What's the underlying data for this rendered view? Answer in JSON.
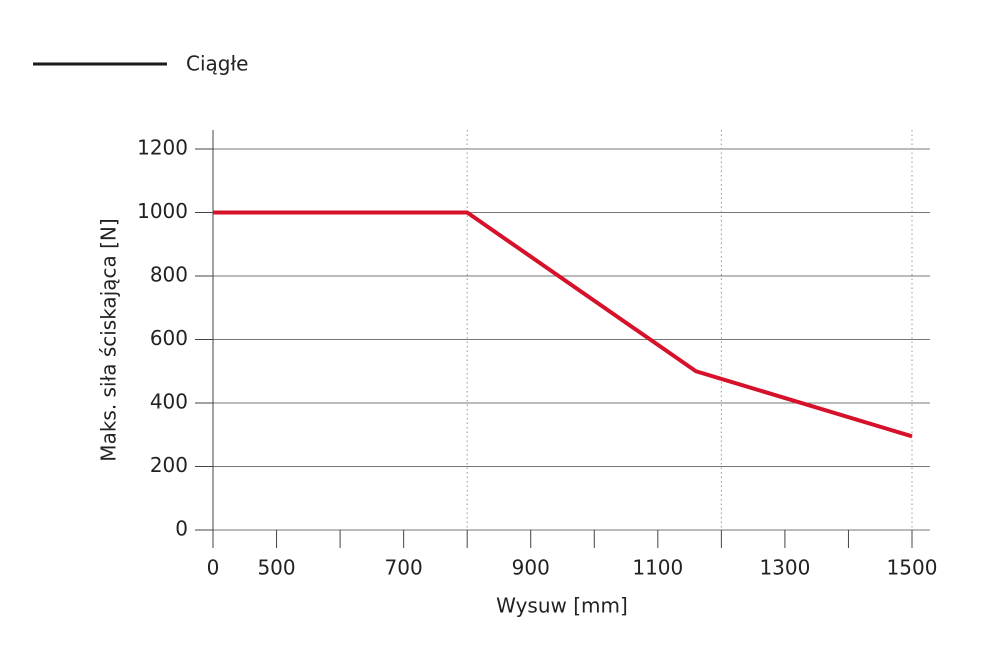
{
  "chart_data": {
    "type": "line",
    "legend_label": "Ciągłe",
    "legend_color": "#1a1a1a",
    "x_label": "Wysuw [mm]",
    "y_label": "Maks. siła ściskająca [N]",
    "series": [
      {
        "name": "Ciągłe",
        "color": "#d6112a",
        "x": [
          0,
          800,
          1160,
          1500
        ],
        "values": [
          1000,
          1000,
          500,
          295
        ]
      }
    ],
    "xlim": [
      0,
      1500
    ],
    "xticks": [
      0,
      500,
      700,
      900,
      1100,
      1300,
      1500
    ],
    "minor_xticks": [
      600,
      800,
      1000,
      1200,
      1400
    ],
    "vertical_grid": [
      800,
      1200,
      1500
    ],
    "ylim": [
      0,
      1200
    ],
    "yticks": [
      0,
      200,
      400,
      600,
      800,
      1000,
      1200
    ],
    "grid": true
  }
}
